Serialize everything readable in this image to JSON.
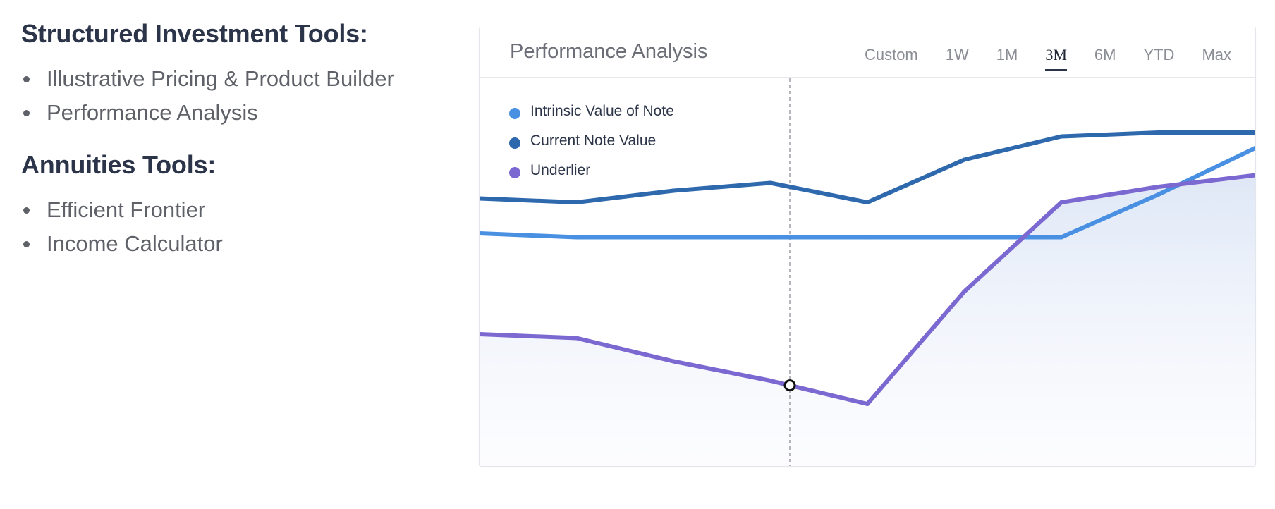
{
  "left": {
    "sections": [
      {
        "heading": "Structured Investment Tools:",
        "items": [
          "Illustrative Pricing & Product Builder",
          "Performance Analysis"
        ]
      },
      {
        "heading": "Annuities Tools:",
        "items": [
          "Efficient Frontier",
          "Income Calculator"
        ]
      }
    ]
  },
  "panel": {
    "title": "Performance Analysis",
    "tabs": [
      {
        "label": "Custom",
        "active": false
      },
      {
        "label": "1W",
        "active": false
      },
      {
        "label": "1M",
        "active": false
      },
      {
        "label": "3M",
        "active": true
      },
      {
        "label": "6M",
        "active": false
      },
      {
        "label": "YTD",
        "active": false
      },
      {
        "label": "Max",
        "active": false
      }
    ]
  },
  "chart_data": {
    "type": "line",
    "title": "Performance Analysis",
    "x": [
      0,
      1,
      2,
      3,
      4,
      5,
      6,
      7,
      8
    ],
    "ylim": [
      0,
      100
    ],
    "grid": false,
    "legend_position": "top-left",
    "cursor_x": 3.2,
    "series": [
      {
        "name": "Intrinsic Value of Note",
        "color": "#4a90e2",
        "values": [
          60,
          59,
          59,
          59,
          59,
          59,
          59,
          70,
          82
        ]
      },
      {
        "name": "Current Note Value",
        "color": "#2e68ad",
        "values": [
          69,
          68,
          71,
          73,
          68,
          79,
          85,
          86,
          86
        ]
      },
      {
        "name": "Underlier",
        "color": "#7b68d0",
        "values": [
          34,
          33,
          27,
          22,
          16,
          45,
          68,
          72,
          75
        ]
      }
    ]
  }
}
